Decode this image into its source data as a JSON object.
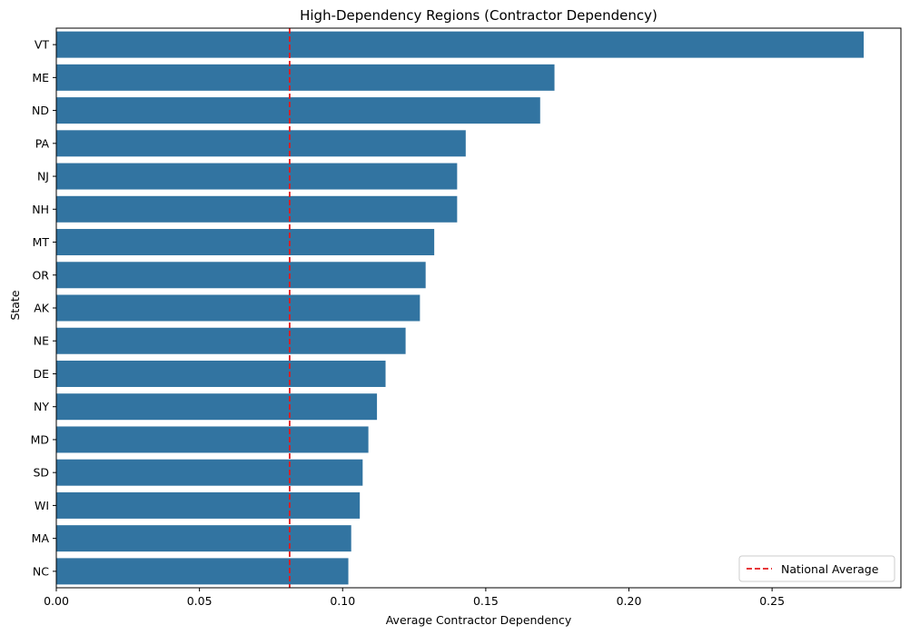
{
  "chart_data": {
    "type": "bar",
    "orientation": "horizontal",
    "title": "High-Dependency Regions (Contractor Dependency)",
    "xlabel": "Average Contractor Dependency",
    "ylabel": "State",
    "xlim": [
      0,
      0.295
    ],
    "xticks": [
      0.0,
      0.05,
      0.1,
      0.15,
      0.2,
      0.25
    ],
    "xtick_labels": [
      "0.00",
      "0.05",
      "0.10",
      "0.15",
      "0.20",
      "0.25"
    ],
    "categories": [
      "VT",
      "ME",
      "ND",
      "PA",
      "NJ",
      "NH",
      "MT",
      "OR",
      "AK",
      "NE",
      "DE",
      "NY",
      "MD",
      "SD",
      "WI",
      "MA",
      "NC"
    ],
    "values": [
      0.282,
      0.174,
      0.169,
      0.143,
      0.14,
      0.14,
      0.132,
      0.129,
      0.127,
      0.122,
      0.115,
      0.112,
      0.109,
      0.107,
      0.106,
      0.103,
      0.102
    ],
    "bar_color": "#3274a1",
    "reference_line": {
      "label": "National Average",
      "value": 0.0815,
      "color": "#e41a1c",
      "style": "dashed"
    },
    "legend": {
      "position": "bottom-right",
      "entries": [
        "National Average"
      ]
    },
    "grid": false
  }
}
